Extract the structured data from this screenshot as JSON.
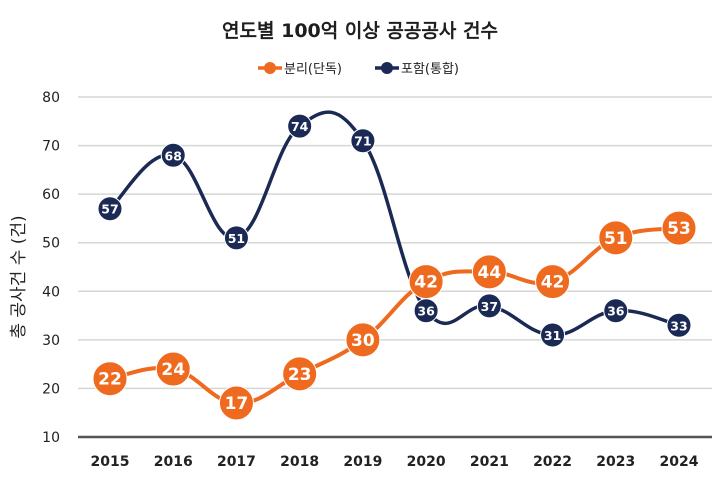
{
  "chart_data": {
    "type": "line",
    "title": "연도별 100억 이상 공공공사 건수",
    "xlabel": "",
    "ylabel": "총 공사건 수 (건)",
    "x": [
      "2015",
      "2016",
      "2017",
      "2018",
      "2019",
      "2020",
      "2021",
      "2022",
      "2023",
      "2024"
    ],
    "ylim": [
      10,
      80
    ],
    "yticks": [
      10,
      20,
      30,
      40,
      50,
      60,
      70,
      80
    ],
    "grid": true,
    "legend_position": "top-center",
    "series": [
      {
        "name": "분리(단독)",
        "color": "#ee6a1f",
        "values": [
          22,
          24,
          17,
          23,
          30,
          42,
          44,
          42,
          51,
          53
        ]
      },
      {
        "name": "포함(통합)",
        "color": "#1b2a55",
        "values": [
          57,
          68,
          51,
          74,
          71,
          36,
          37,
          31,
          36,
          33
        ]
      }
    ]
  }
}
